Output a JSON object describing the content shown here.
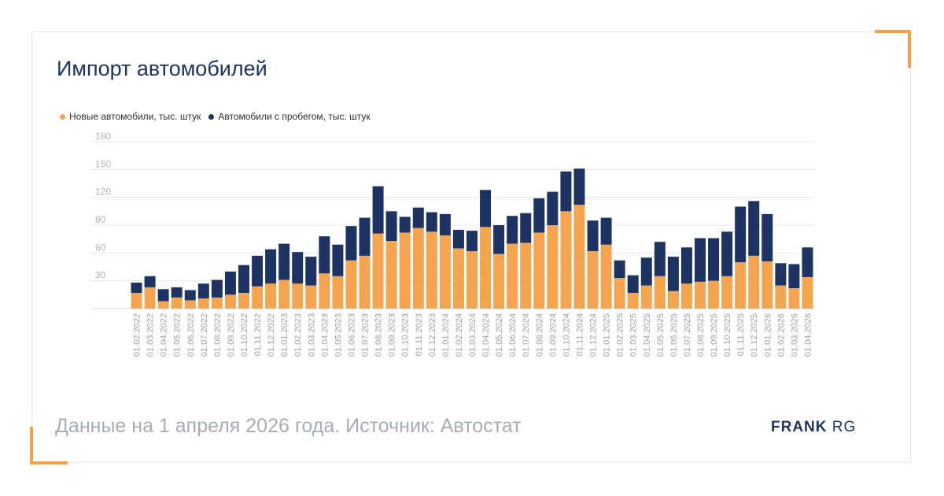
{
  "title": "Импорт автомобилей",
  "footer": "Данные на 1 апреля 2026 года. Источник: Автостат",
  "logo": {
    "bold": "FRANK",
    "light": "RG"
  },
  "colors": {
    "new": "#f5a54f",
    "used": "#1d3462",
    "accent": "#f5a04a"
  },
  "chart_data": {
    "type": "bar",
    "stacked": true,
    "title": "Импорт автомобилей",
    "xlabel": "",
    "ylabel": "",
    "ylim": [
      0,
      180
    ],
    "yticks": [
      30,
      60,
      90,
      120,
      150,
      180
    ],
    "legend": "top-left",
    "grid": true,
    "categories": [
      "01.02.2022",
      "01.03.2022",
      "01.04.2022",
      "01.05.2022",
      "01.06.2022",
      "01.07.2022",
      "01.08.2022",
      "01.09.2022",
      "01.10.2022",
      "01.11.2022",
      "01.12.2022",
      "01.01.2023",
      "01.02.2023",
      "01.03.2023",
      "01.04.2023",
      "01.05.2023",
      "01.06.2023",
      "01.07.2023",
      "01.08.2023",
      "01.09.2023",
      "01.10.2023",
      "01.11.2023",
      "01.12.2023",
      "01.01.2024",
      "01.02.2024",
      "01.03.2024",
      "01.04.2024",
      "01.05.2024",
      "01.06.2024",
      "01.07.2024",
      "01.08.2024",
      "01.09.2024",
      "01.10.2024",
      "01.11.2024",
      "01.12.2024",
      "01.01.2025",
      "01.02.2025",
      "01.03.2025",
      "01.04.2025",
      "01.05.2025",
      "01.06.2025",
      "01.07.2025",
      "01.08.2025",
      "01.09.2025",
      "01.10.2025",
      "01.11.2025",
      "01.12.2025",
      "01.01.2026",
      "01.02.2026",
      "01.03.2026",
      "01.04.2026"
    ],
    "series": [
      {
        "name": "Новые автомобили, тыс. штук",
        "values": [
          17,
          23,
          8,
          12,
          9,
          11,
          12,
          15,
          17,
          24,
          27,
          31,
          27,
          25,
          38,
          35,
          52,
          57,
          81,
          73,
          82,
          87,
          83,
          79,
          65,
          62,
          88,
          59,
          70,
          71,
          82,
          90,
          105,
          112,
          62,
          69,
          33,
          17,
          25,
          35,
          19,
          27,
          29,
          30,
          35,
          50,
          57,
          51,
          25,
          22,
          34
        ]
      },
      {
        "name": "Автомобили с пробегом, тыс. штук",
        "values": [
          11,
          12,
          13,
          11,
          11,
          16,
          19,
          25,
          30,
          33,
          37,
          39,
          34,
          31,
          40,
          34,
          37,
          41,
          51,
          32,
          17,
          22,
          21,
          23,
          20,
          22,
          40,
          31,
          30,
          32,
          37,
          36,
          43,
          39,
          33,
          29,
          19,
          19,
          30,
          37,
          37,
          39,
          47,
          46,
          48,
          60,
          59,
          51,
          24,
          26,
          32
        ]
      }
    ]
  }
}
